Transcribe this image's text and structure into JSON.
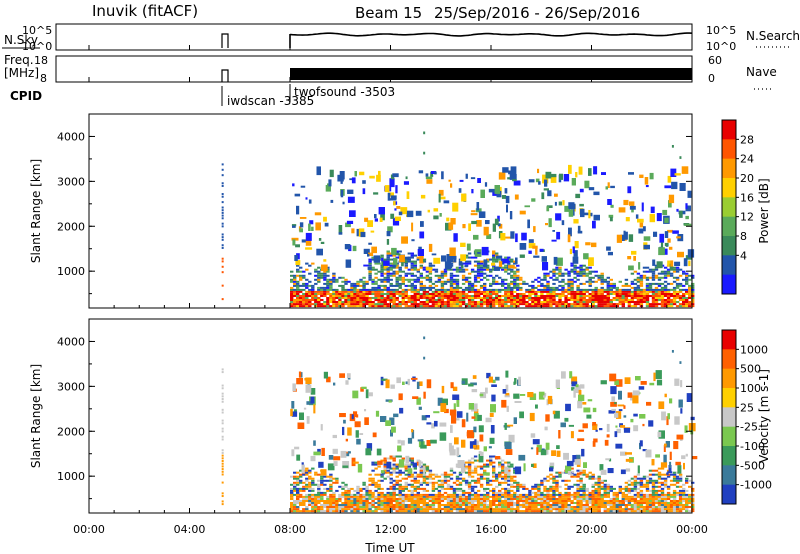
{
  "header": {
    "station": "Inuvik (fitACF)",
    "beam": "Beam 15",
    "date_range": "25/Sep/2016 - 26/Sep/2016"
  },
  "param_panels": {
    "nsky": {
      "label": "N.Sky",
      "ticks": [
        "10^5",
        "10^0"
      ],
      "right_label": "N.Search",
      "right_ticks": [
        "10^5",
        "10^0"
      ]
    },
    "freq": {
      "label_line1": "Freq.",
      "label_line2": "[MHz]",
      "ticks": [
        "18",
        "8"
      ],
      "right_label": "Nave",
      "right_ticks": [
        "60",
        "0"
      ]
    },
    "cpid": {
      "label": "CPID",
      "entries": [
        {
          "text": "iwdscan -3385",
          "time_h": 5.3
        },
        {
          "text": "twofsound -3503",
          "time_h": 8.0
        }
      ]
    }
  },
  "x_axis": {
    "label": "Time UT",
    "ticks": [
      "00:00",
      "04:00",
      "08:00",
      "12:00",
      "16:00",
      "20:00",
      "00:00"
    ],
    "range_h": [
      0,
      24
    ]
  },
  "chart_data": [
    {
      "type": "heatmap",
      "title": "",
      "xlabel": "Time UT",
      "ylabel": "Slant Range [km]",
      "xlim": [
        0,
        24
      ],
      "ylim": [
        180,
        4500
      ],
      "yticks": [
        1000,
        2000,
        3000,
        4000
      ],
      "colorbar": {
        "label": "Power [dB]",
        "ticks": [
          "28",
          "24",
          "20",
          "16",
          "12",
          "8",
          "4"
        ],
        "colors": [
          "#1a1aff",
          "#2255aa",
          "#3a8a5a",
          "#5aaa5a",
          "#9acd32",
          "#ffd000",
          "#ff9900",
          "#ff5500",
          "#e80000"
        ],
        "range": [
          0,
          32
        ]
      },
      "data_coverage": [
        {
          "t_start": 5.2,
          "t_end": 5.4,
          "r_min": 300,
          "r_max": 3200,
          "level": "mixed"
        },
        {
          "t_start": 8.0,
          "t_end": 24.0,
          "r_min": 180,
          "r_max": 1000,
          "level": "high"
        },
        {
          "t_start": 8.0,
          "t_end": 24.0,
          "r_min": 1000,
          "r_max": 3100,
          "level": "sparse"
        }
      ]
    },
    {
      "type": "heatmap",
      "title": "",
      "xlabel": "Time UT",
      "ylabel": "Slant Range [km]",
      "xlim": [
        0,
        24
      ],
      "ylim": [
        180,
        4500
      ],
      "yticks": [
        1000,
        2000,
        3000,
        4000
      ],
      "colorbar": {
        "label": "Velocity [m s-1]",
        "ticks": [
          "1000",
          "500",
          "100",
          "25",
          "-25",
          "-100",
          "-500",
          "-1000"
        ],
        "colors": [
          "#2040c0",
          "#3a7a9a",
          "#3a9a5a",
          "#7ac850",
          "#c8c8c8",
          "#ffd000",
          "#ff9900",
          "#ff6000",
          "#e80000"
        ],
        "range": [
          -1200,
          1200
        ]
      },
      "data_coverage": [
        {
          "t_start": 5.2,
          "t_end": 5.4,
          "r_min": 300,
          "r_max": 3200,
          "level": "mixed"
        },
        {
          "t_start": 8.0,
          "t_end": 24.0,
          "r_min": 180,
          "r_max": 1000,
          "level": "high"
        },
        {
          "t_start": 8.0,
          "t_end": 24.0,
          "r_min": 1000,
          "r_max": 3100,
          "level": "sparse"
        }
      ]
    }
  ]
}
